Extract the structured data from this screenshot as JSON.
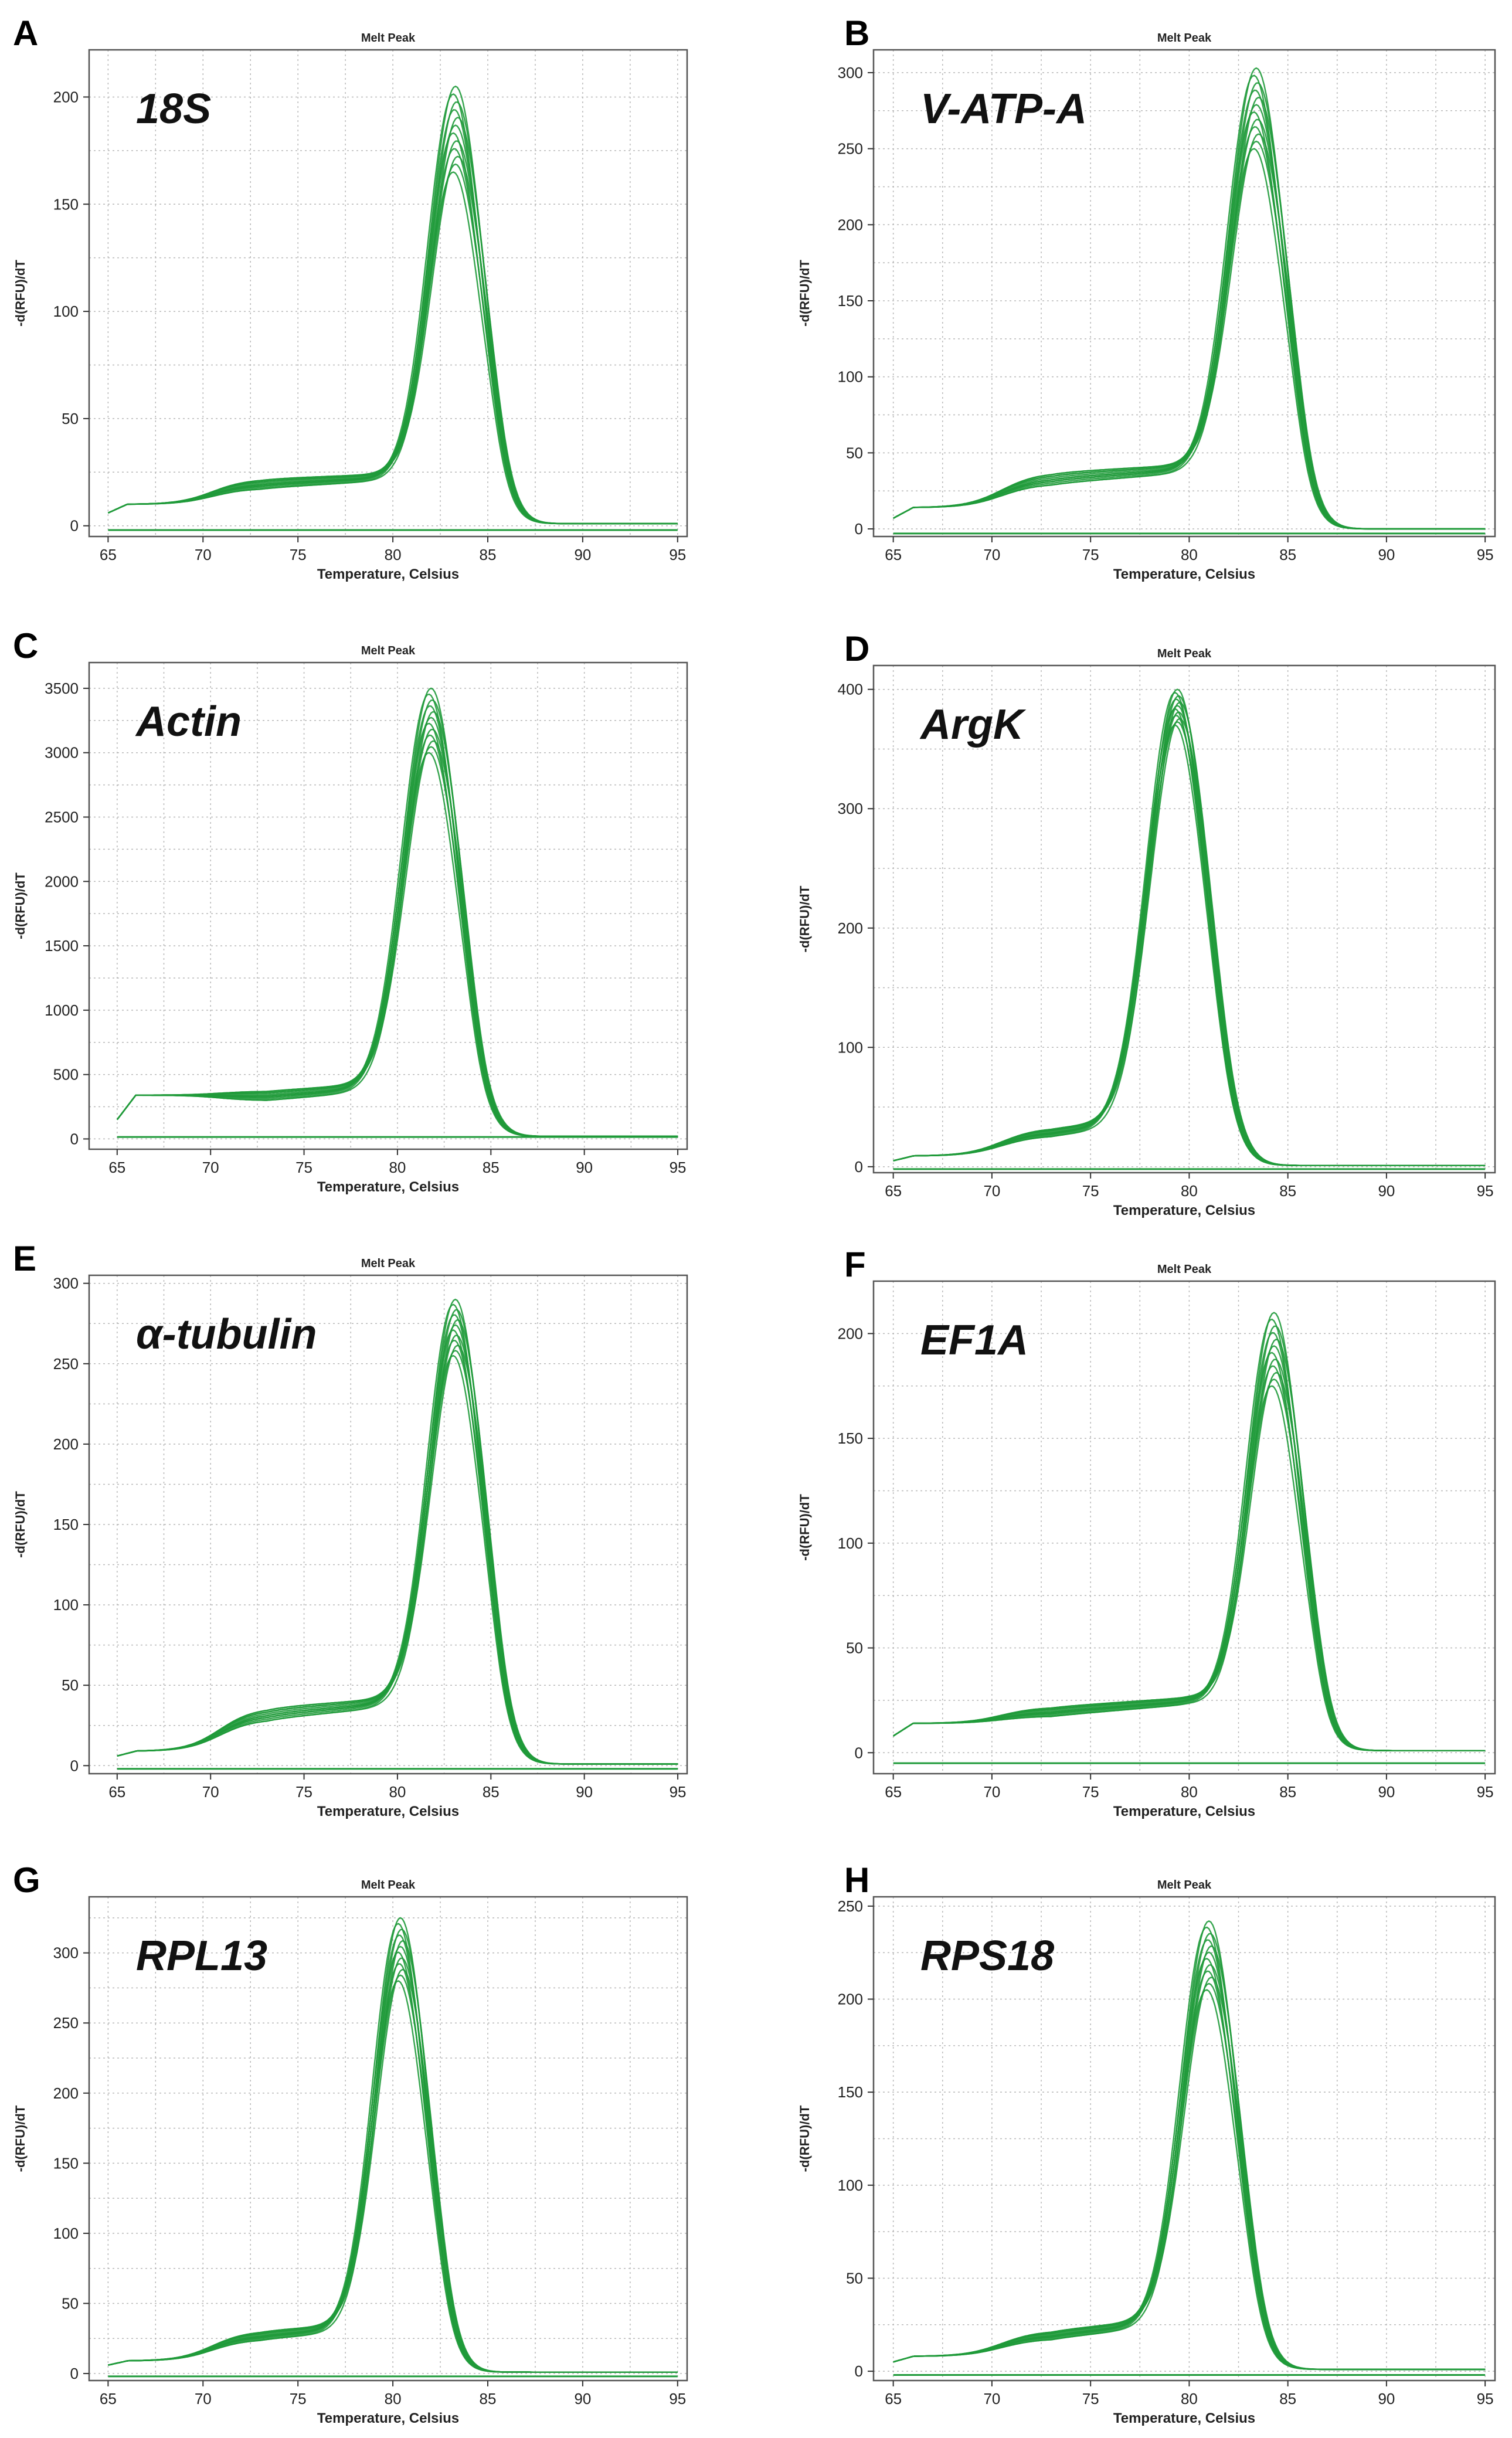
{
  "figure": {
    "background": "#ffffff",
    "line_color": "#1f9a3a",
    "baseline_color": "#1f9a3a"
  },
  "chart_data": [
    {
      "type": "line",
      "panel_label": "A",
      "title": "Melt Peak",
      "gene_label": "18S",
      "xlabel": "Temperature, Celsius",
      "ylabel": "-d(RFU)/dT",
      "xlim": [
        64,
        95.5
      ],
      "ylim": [
        -5,
        222
      ],
      "xticks": [
        65,
        70,
        75,
        80,
        85,
        90,
        95
      ],
      "yticks": [
        0,
        50,
        100,
        150,
        200
      ],
      "grid": true,
      "baseline": -2,
      "n_replicates": 12,
      "curve": {
        "start": 6,
        "plateau": 10,
        "shoulder": 20,
        "shoulder_end": 23,
        "tm": 83.3,
        "peak_min": 165,
        "peak_max": 205,
        "width": 1.35,
        "tail": 1
      }
    },
    {
      "type": "line",
      "panel_label": "B",
      "title": "Melt Peak",
      "gene_label": "V-ATP-A",
      "xlabel": "Temperature, Celsius",
      "ylabel": "-d(RFU)/dT",
      "xlim": [
        64,
        95.5
      ],
      "ylim": [
        -5,
        315
      ],
      "xticks": [
        65,
        70,
        75,
        80,
        85,
        90,
        95
      ],
      "yticks": [
        0,
        50,
        100,
        150,
        200,
        250,
        300
      ],
      "grid": true,
      "baseline": -3,
      "n_replicates": 12,
      "curve": {
        "start": 7,
        "plateau": 14,
        "shoulder": 34,
        "shoulder_end": 40,
        "tm": 83.4,
        "peak_min": 250,
        "peak_max": 303,
        "width": 1.35,
        "tail": 0
      }
    },
    {
      "type": "line",
      "panel_label": "C",
      "title": "Melt Peak",
      "gene_label": "Actin",
      "xlabel": "Temperature, Celsius",
      "ylabel": "-d(RFU)/dT",
      "xlim": [
        63.5,
        95.5
      ],
      "ylim": [
        -80,
        3700
      ],
      "xticks": [
        65,
        70,
        75,
        80,
        85,
        90,
        95
      ],
      "yticks": [
        0,
        500,
        1000,
        1500,
        2000,
        2500,
        3000,
        3500
      ],
      "grid": true,
      "baseline": 15,
      "n_replicates": 12,
      "curve": {
        "start": 150,
        "plateau": 340,
        "shoulder": 340,
        "shoulder_end": 420,
        "tm": 81.8,
        "peak_min": 3000,
        "peak_max": 3500,
        "width": 1.45,
        "tail": 20
      }
    },
    {
      "type": "line",
      "panel_label": "D",
      "title": "Melt Peak",
      "gene_label": "ArgK",
      "xlabel": "Temperature, Celsius",
      "ylabel": "-d(RFU)/dT",
      "xlim": [
        64,
        95.5
      ],
      "ylim": [
        -5,
        420
      ],
      "xticks": [
        65,
        70,
        75,
        80,
        85,
        90,
        95
      ],
      "yticks": [
        0,
        100,
        200,
        300,
        400
      ],
      "grid": true,
      "baseline": -2,
      "n_replicates": 12,
      "curve": {
        "start": 5,
        "plateau": 9,
        "shoulder": 30,
        "shoulder_end": 40,
        "tm": 79.4,
        "peak_min": 370,
        "peak_max": 400,
        "width": 1.45,
        "tail": 1
      }
    },
    {
      "type": "line",
      "panel_label": "E",
      "title": "Melt Peak",
      "gene_label": "α-tubulin",
      "xlabel": "Temperature, Celsius",
      "ylabel": "-d(RFU)/dT",
      "xlim": [
        63.5,
        95.5
      ],
      "ylim": [
        -5,
        305
      ],
      "xticks": [
        65,
        70,
        75,
        80,
        85,
        90,
        95
      ],
      "yticks": [
        0,
        50,
        100,
        150,
        200,
        250,
        300
      ],
      "grid": true,
      "baseline": -2,
      "n_replicates": 12,
      "curve": {
        "start": 6,
        "plateau": 9,
        "shoulder": 33,
        "shoulder_end": 40,
        "tm": 83.1,
        "peak_min": 255,
        "peak_max": 290,
        "width": 1.4,
        "tail": 1
      }
    },
    {
      "type": "line",
      "panel_label": "F",
      "title": "Melt Peak",
      "gene_label": "EF1A",
      "xlabel": "Temperature, Celsius",
      "ylabel": "-d(RFU)/dT",
      "xlim": [
        64,
        95.5
      ],
      "ylim": [
        -10,
        225
      ],
      "xticks": [
        65,
        70,
        75,
        80,
        85,
        90,
        95
      ],
      "yticks": [
        0,
        50,
        100,
        150,
        200
      ],
      "grid": true,
      "baseline": -5,
      "n_replicates": 12,
      "curve": {
        "start": 8,
        "plateau": 14,
        "shoulder": 20,
        "shoulder_end": 25,
        "tm": 84.3,
        "peak_min": 175,
        "peak_max": 210,
        "width": 1.3,
        "tail": 1
      }
    },
    {
      "type": "line",
      "panel_label": "G",
      "title": "Melt Peak",
      "gene_label": "RPL13",
      "xlabel": "Temperature, Celsius",
      "ylabel": "-d(RFU)/dT",
      "xlim": [
        64,
        95.5
      ],
      "ylim": [
        -5,
        340
      ],
      "xticks": [
        65,
        70,
        75,
        80,
        85,
        90,
        95
      ],
      "yticks": [
        0,
        50,
        100,
        150,
        200,
        250,
        300
      ],
      "grid": true,
      "baseline": -2,
      "n_replicates": 12,
      "curve": {
        "start": 6,
        "plateau": 9,
        "shoulder": 28,
        "shoulder_end": 35,
        "tm": 80.4,
        "peak_min": 280,
        "peak_max": 325,
        "width": 1.35,
        "tail": 1
      }
    },
    {
      "type": "line",
      "panel_label": "H",
      "title": "Melt Peak",
      "gene_label": "RPS18",
      "xlabel": "Temperature, Celsius",
      "ylabel": "-d(RFU)/dT",
      "xlim": [
        64,
        95.5
      ],
      "ylim": [
        -5,
        255
      ],
      "xticks": [
        65,
        70,
        75,
        80,
        85,
        90,
        95
      ],
      "yticks": [
        0,
        50,
        100,
        150,
        200,
        250
      ],
      "grid": true,
      "baseline": -2,
      "n_replicates": 12,
      "curve": {
        "start": 5,
        "plateau": 8,
        "shoulder": 20,
        "shoulder_end": 28,
        "tm": 81.0,
        "peak_min": 205,
        "peak_max": 242,
        "width": 1.35,
        "tail": 1
      }
    }
  ]
}
